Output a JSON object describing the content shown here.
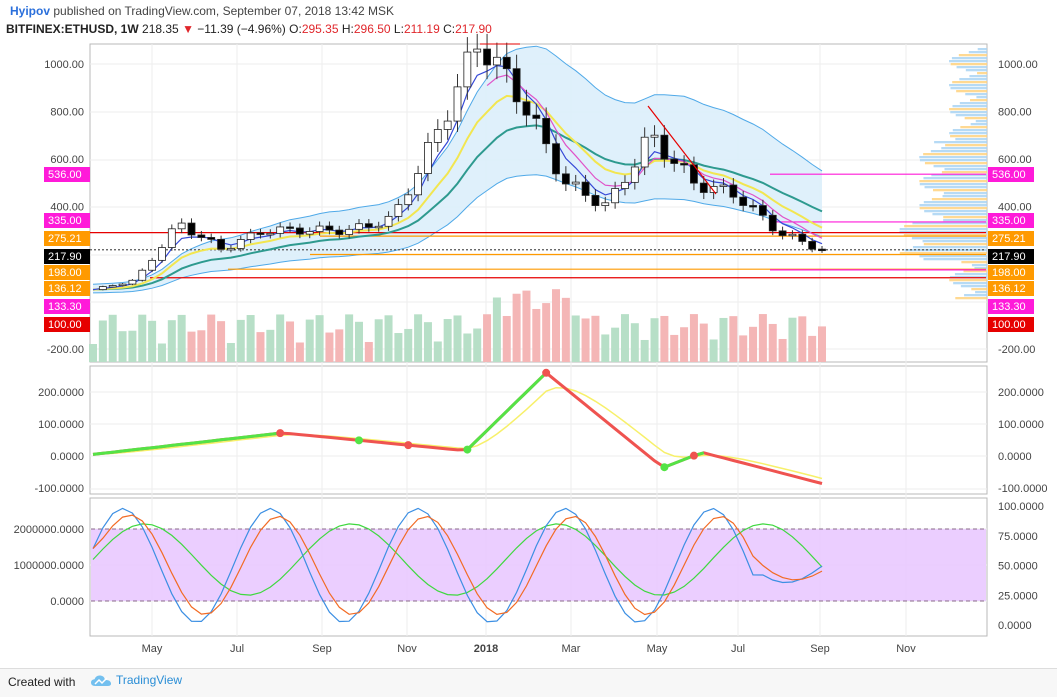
{
  "header": {
    "user": "Hyipov",
    "published_text": "published on TradingView.com, September 07, 2018 13:42 MSK",
    "symbol": "BITFINEX:ETHUSD, 1W",
    "last": "218.35",
    "change": "−11.39 (−4.96%)",
    "o_label": "O:",
    "o": "295.35",
    "h_label": "H:",
    "h": "296.50",
    "l_label": "L:",
    "l": "211.19",
    "c_label": "C:",
    "c": "217.90"
  },
  "colors": {
    "up_candle": "#ffffff",
    "down_candle": "#000000",
    "volume_up": "#b7dfc7",
    "volume_down": "#f4b6b6",
    "ema_fast": "#3548d6",
    "ema_mid": "#f2e650",
    "ema_slow": "#2e9a8f",
    "bb": "#4fa9e8",
    "bb_fill": "#dbeefb",
    "magenta": "#ff1ad9",
    "orange": "#ff9a00",
    "red": "#e60000",
    "stoch_band": "#e8c6ff"
  },
  "price_axis": {
    "ticks": [
      "1000.00",
      "800.00",
      "600.00",
      "400.00",
      "-200.00"
    ],
    "badges": [
      {
        "text": "536.00",
        "value": 536,
        "color": "#ff1ad9"
      },
      {
        "text": "335.00",
        "value": 335,
        "color": "#ff1ad9"
      },
      {
        "text": "275.21",
        "value": 275.21,
        "color": "#ff9a00"
      },
      {
        "text": "217.90",
        "value": 217.9,
        "color": "#000000"
      },
      {
        "text": "198.00",
        "value": 198,
        "color": "#ff9a00"
      },
      {
        "text": "136.12",
        "value": 136.12,
        "color": "#ff9a00"
      },
      {
        "text": "133.30",
        "value": 133.3,
        "color": "#ff1ad9"
      },
      {
        "text": "100.00",
        "value": 100,
        "color": "#e60000"
      }
    ],
    "right_ticks": [
      "1000.00",
      "800.00",
      "600.00",
      "400.00",
      "-200.00"
    ]
  },
  "pane2_axis": {
    "ticks": [
      "200.0000",
      "100.0000",
      "0.0000",
      "-100.0000"
    ]
  },
  "pane3_axis": {
    "left_ticks": [
      "2000000.0000",
      "1000000.0000",
      "0.0000"
    ],
    "right_ticks": [
      "100.0000",
      "75.0000",
      "50.0000",
      "25.0000",
      "0.0000"
    ]
  },
  "time_axis": {
    "labels": [
      "May",
      "Jul",
      "Sep",
      "Nov",
      "2018",
      "Mar",
      "May",
      "Jul",
      "Sep",
      "Nov"
    ]
  },
  "footer": {
    "created_with": "Created with",
    "brand": "TradingView"
  },
  "chart_data": {
    "type": "line",
    "title": "",
    "xlabel": "",
    "ylabel": "",
    "ylim": [
      -200,
      1050
    ],
    "series": [
      {
        "name": "",
        "x": [
          "Apr 2017",
          "May 2017",
          "Jun 2017",
          "Jul 2017",
          "Aug 2017",
          "Sep 2017",
          "Oct 2017",
          "Nov 2017",
          "Dec 2017",
          "Jan 2018",
          "Feb 2018",
          "Mar 2018",
          "Apr 2018",
          "May 2018",
          "Jun 2018",
          "Jul 2018",
          "Aug 2018",
          "Sep 2018"
        ],
        "values": [
          50,
          90,
          330,
          220,
          300,
          300,
          300,
          350,
          700,
          1100,
          850,
          500,
          400,
          700,
          500,
          450,
          290,
          218
        ]
      }
    ]
  }
}
